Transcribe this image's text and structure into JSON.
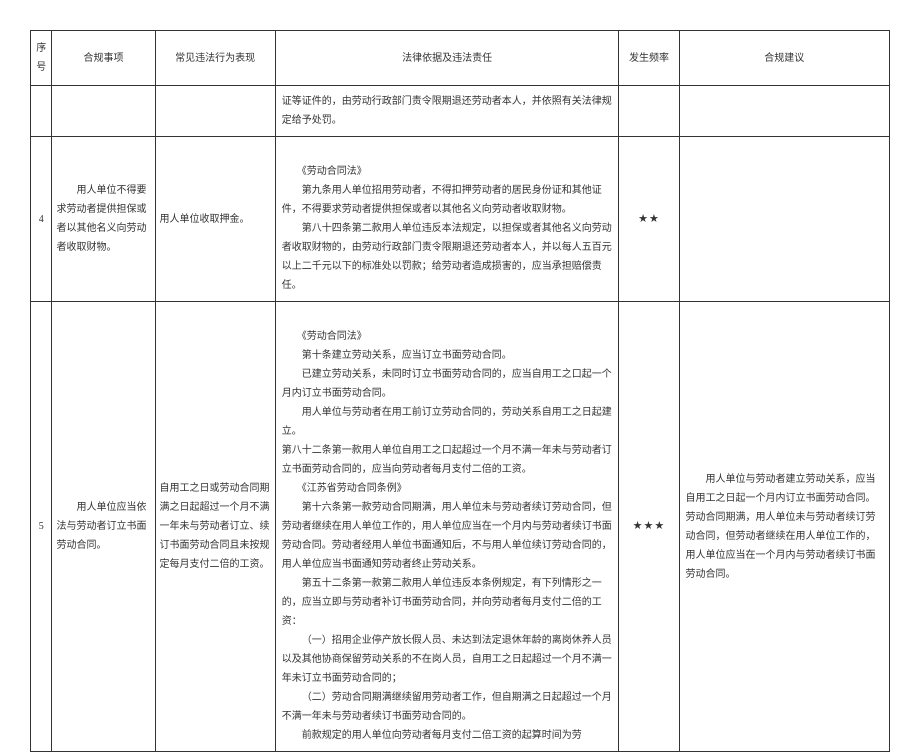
{
  "headers": {
    "seq": "序号",
    "matter": "合规事项",
    "violation": "常见违法行为表现",
    "legal": "法律依据及违法责任",
    "freq": "发生频率",
    "advice": "合规建议"
  },
  "row_partial": {
    "legal": "证等证件的，由劳动行政部门责令限期退还劳动者本人，并依照有关法律规定给予处罚。"
  },
  "row4": {
    "seq": "4",
    "matter": "　　用人单位不得要求劳动者提供担保或者以其他名义向劳动者收取财物。",
    "violation": "用人单位收取押金。",
    "legal_title": "《劳动合同法》",
    "legal_p1": "第九条用人单位招用劳动者，不得扣押劳动者的居民身份证和其他证件，不得要求劳动者提供担保或者以其他名义向劳动者收取财物。",
    "legal_p2": "第八十四条第二款用人单位违反本法规定，以担保或者其他名义向劳动者收取财物的，由劳动行政部门责令限期退还劳动者本人，并以每人五百元以上二千元以下的标准处以罚款；给劳动者造成损害的，应当承担赔偿责任。",
    "freq": "★★",
    "advice": ""
  },
  "row5": {
    "seq": "5",
    "matter": "　　用人单位应当依法与劳动者订立书面劳动合同。",
    "violation": "自用工之日或劳动合同期满之日起超过一个月不满一年未与劳动者订立、续订书面劳动合同且未按规定每月支付二倍的工资。",
    "legal_title1": "《劳动合同法》",
    "legal_p1": "第十条建立劳动关系，应当订立书面劳动合同。",
    "legal_p2": "已建立劳动关系，未同时订立书面劳动合同的，应当自用工之口起一个月内订立书面劳动合同。",
    "legal_p3": "用人单位与劳动者在用工前订立劳动合同的，劳动关系自用工之日起建立。",
    "legal_p4": "第八十二条第一款用人单位自用工之口起超过一个月不满一年未与劳动者订立书面劳动合同的，应当向劳动者每月支付二倍的工资。",
    "legal_title2": "《江苏省劳动合同条例》",
    "legal_p5": "第十六条第一款劳动合同期满，用人单位未与劳动者续订劳动合同，但劳动者继续在用人单位工作的，用人单位应当在一个月内与劳动者续订书面劳动合同。劳动者经用人单位书面通知后，不与用人单位续订劳动合同的，用人单位应当书面通知劳动者终止劳动关系。",
    "legal_p6": "第五十二条第一款第二款用人单位违反本条例规定，有下列情形之一的，应当立即与劳动者补订书面劳动合同，并向劳动者每月支付二倍的工资：",
    "legal_p7": "（一）招用企业停产放长假人员、未达到法定退休年龄的离岗休养人员以及其他协商保留劳动关系的不在岗人员，自用工之日起超过一个月不满一年未订立书面劳动合同的；",
    "legal_p8": "（二）劳动合同期满继续留用劳动者工作，但自期满之日起超过一个月不满一年未与劳动者续订书面劳动合同的。",
    "legal_p9": "前款规定的用人单位向劳动者每月支付二倍工资的起算时间为劳",
    "freq": "★★★",
    "advice": "　　用人单位与劳动者建立劳动关系，应当自用工之日起一个月内订立书面劳动合同。劳动合同期满，用人单位未与劳动者续订劳动合同，但劳动者继续在用人单位工作的，用人单位应当在一个月内与劳动者续订书面劳动合同。"
  }
}
